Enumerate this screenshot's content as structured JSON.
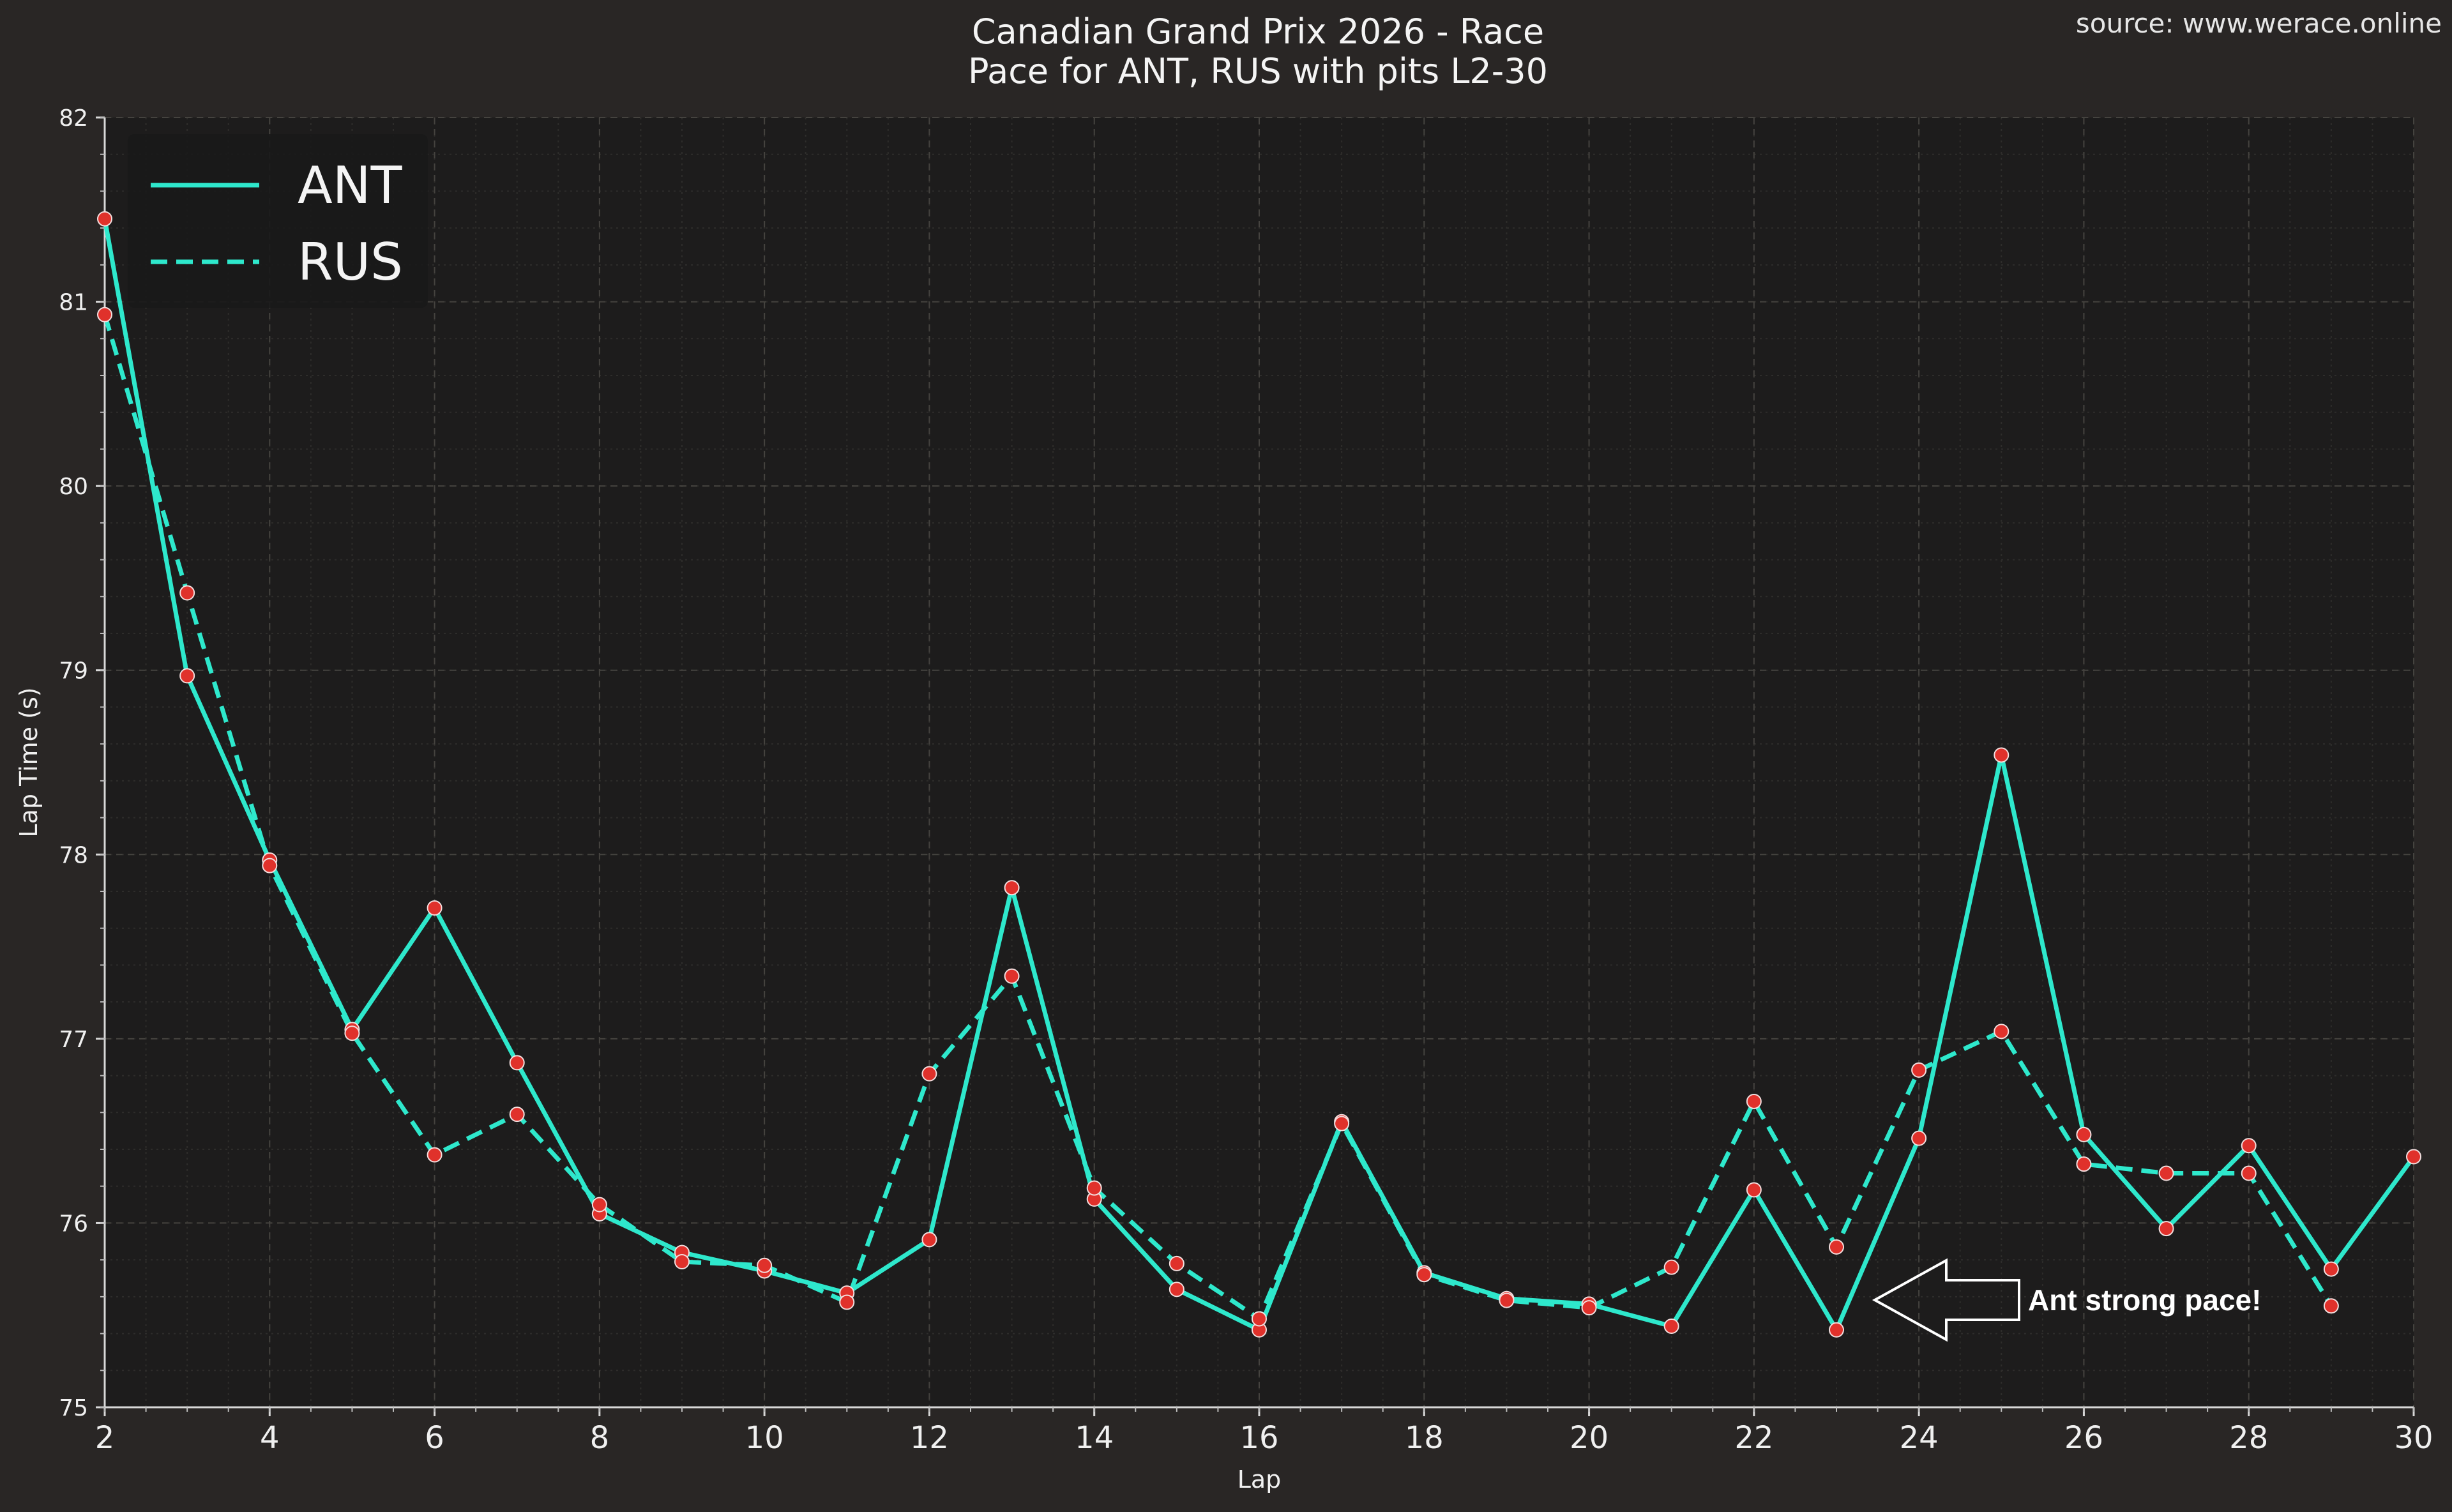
{
  "source": "source: www.werace.online",
  "annotation": "Ant strong pace!",
  "chart_data": {
    "type": "line",
    "title": "Canadian Grand Prix 2026 - Race",
    "subtitle": "Pace for ANT, RUS with pits L2-30",
    "xlabel": "Lap",
    "ylabel": "Lap Time (s)",
    "xlim": [
      2,
      30
    ],
    "ylim": [
      75,
      82
    ],
    "x_ticks": [
      2,
      4,
      6,
      8,
      10,
      12,
      14,
      16,
      18,
      20,
      22,
      24,
      26,
      28,
      30
    ],
    "y_ticks": [
      75,
      76,
      77,
      78,
      79,
      80,
      81,
      82
    ],
    "grid": true,
    "legend_position": "top-left",
    "colors": {
      "line": "#2ee8cc",
      "marker": "#e0312b",
      "background": "#1d1c1c",
      "figure": "#292625"
    },
    "x": [
      2,
      3,
      4,
      5,
      6,
      7,
      8,
      9,
      10,
      11,
      12,
      13,
      14,
      15,
      16,
      17,
      18,
      19,
      20,
      21,
      22,
      23,
      24,
      25,
      26,
      27,
      28,
      29,
      30
    ],
    "series": [
      {
        "name": "ANT",
        "style": "solid",
        "values": [
          81.45,
          78.97,
          77.97,
          77.05,
          77.71,
          76.87,
          76.05,
          75.84,
          75.74,
          75.62,
          75.91,
          77.82,
          76.13,
          75.64,
          75.42,
          76.55,
          75.73,
          75.59,
          75.56,
          75.44,
          76.18,
          75.42,
          76.46,
          78.54,
          76.48,
          75.97,
          76.42,
          75.75,
          76.36
        ]
      },
      {
        "name": "RUS",
        "style": "dashed",
        "values": [
          80.93,
          79.42,
          77.94,
          77.03,
          76.37,
          76.59,
          76.1,
          75.79,
          75.77,
          75.57,
          76.81,
          77.34,
          76.19,
          75.78,
          75.48,
          76.54,
          75.72,
          75.58,
          75.54,
          75.76,
          76.66,
          75.87,
          76.83,
          77.04,
          76.32,
          76.27,
          76.27,
          75.55,
          null
        ]
      }
    ],
    "annotations": [
      {
        "text": "Ant strong pace!",
        "arrow_direction": "left",
        "near_x": 24.3,
        "near_y": 75.58
      }
    ]
  }
}
